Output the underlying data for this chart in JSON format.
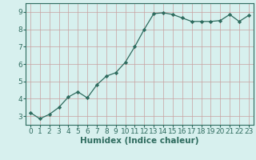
{
  "x": [
    0,
    1,
    2,
    3,
    4,
    5,
    6,
    7,
    8,
    9,
    10,
    11,
    12,
    13,
    14,
    15,
    16,
    17,
    18,
    19,
    20,
    21,
    22,
    23
  ],
  "y": [
    3.2,
    2.85,
    3.1,
    3.5,
    4.1,
    4.4,
    4.05,
    4.8,
    5.3,
    5.5,
    6.1,
    7.0,
    8.0,
    8.9,
    8.95,
    8.85,
    8.65,
    8.45,
    8.45,
    8.45,
    8.5,
    8.85,
    8.45,
    8.8
  ],
  "line_color": "#2e6b5e",
  "marker": "D",
  "marker_size": 2.2,
  "bg_color": "#d7f0ee",
  "grid_color": "#c8a0a0",
  "xlabel": "Humidex (Indice chaleur)",
  "ylim": [
    2.5,
    9.5
  ],
  "xlim": [
    -0.5,
    23.5
  ],
  "yticks": [
    3,
    4,
    5,
    6,
    7,
    8,
    9
  ],
  "xticks": [
    0,
    1,
    2,
    3,
    4,
    5,
    6,
    7,
    8,
    9,
    10,
    11,
    12,
    13,
    14,
    15,
    16,
    17,
    18,
    19,
    20,
    21,
    22,
    23
  ],
  "tick_fontsize": 6.5,
  "xlabel_fontsize": 7.5,
  "line_width": 0.9,
  "spine_color": "#2e6b5e"
}
